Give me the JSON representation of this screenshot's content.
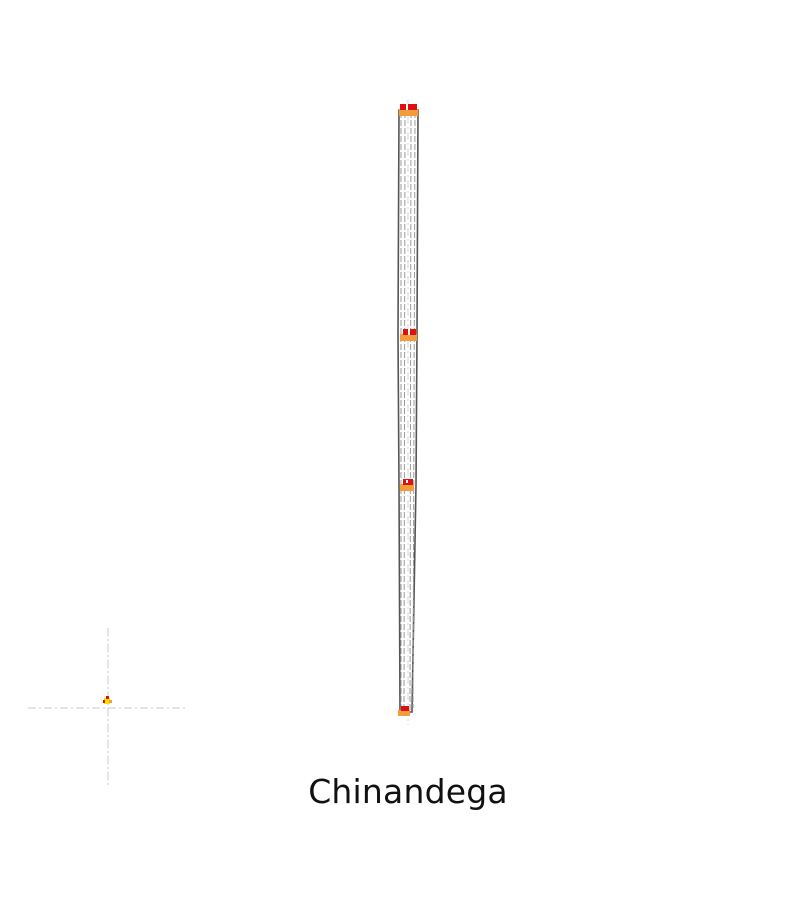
{
  "map": {
    "place_name": "Chinandega",
    "colors": {
      "background": "#ffffff",
      "guide_line": "#c8c8c8",
      "route_outline": "#555555",
      "route_fill": "#9a9a9a",
      "marker_orange": "#f39c3c",
      "marker_red": "#e01010",
      "marker_yellow": "#ffe000"
    },
    "icons": {
      "locator": "crosshair-locator-icon",
      "marker": "town-marker-icon"
    }
  }
}
